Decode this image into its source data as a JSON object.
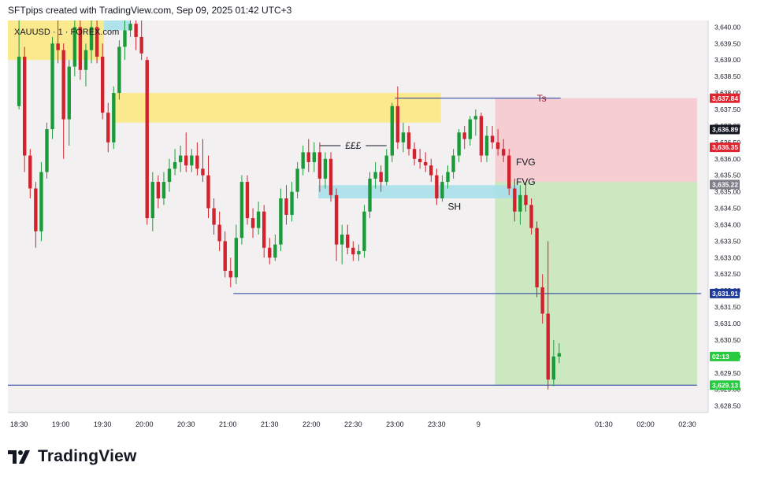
{
  "header": {
    "attribution": "SFTpips created with TradingView.com, Sep 09, 2025 01:42 UTC+3"
  },
  "footer": {
    "brand": "TradingView"
  },
  "symbol_label": "XAUUSD · 1 · FOREX.com",
  "colors": {
    "up": "#1b9a3a",
    "down": "#d2222d",
    "background": "#f3f0f1",
    "supply_zone": "#fbe882",
    "demand_zone": "#a7e0ea",
    "stop_zone": "#f6c8cc",
    "target_zone": "#c3e6b8",
    "level_line": "#1f3a9b",
    "current_price": "#27c93f"
  },
  "chart_data": {
    "type": "candlestick",
    "symbol": "XAUUSD",
    "timeframe": "1",
    "time_axis": [
      "18:30",
      "19:00",
      "19:30",
      "20:00",
      "20:30",
      "21:00",
      "21:30",
      "22:00",
      "22:30",
      "23:00",
      "23:30",
      "9",
      "01:30",
      "02:00",
      "02:30"
    ],
    "price_axis": [
      "3,640.00",
      "3,639.50",
      "3,639.00",
      "3,638.50",
      "3,638.00",
      "3,637.50",
      "3,637.00",
      "3,636.50",
      "3,636.00",
      "3,635.50",
      "3,635.00",
      "3,634.50",
      "3,634.00",
      "3,633.50",
      "3,633.00",
      "3,632.50",
      "3,632.00",
      "3,631.50",
      "3,631.00",
      "3,630.50",
      "3,630.00",
      "3,629.50",
      "3,629.00",
      "3,628.50"
    ],
    "ylim": [
      3628.3,
      3640.2
    ],
    "xlim": [
      "18:22",
      "02:45"
    ],
    "candles": [
      {
        "t": "18:30",
        "o": 3637.6,
        "h": 3640.2,
        "l": 3637.5,
        "c": 3639.1
      },
      {
        "t": "18:34",
        "o": 3639.1,
        "h": 3639.4,
        "l": 3635.6,
        "c": 3636.1
      },
      {
        "t": "18:38",
        "o": 3636.1,
        "h": 3636.3,
        "l": 3634.8,
        "c": 3635.1
      },
      {
        "t": "18:42",
        "o": 3635.1,
        "h": 3635.3,
        "l": 3633.3,
        "c": 3633.8
      },
      {
        "t": "18:46",
        "o": 3633.8,
        "h": 3635.9,
        "l": 3633.5,
        "c": 3635.6
      },
      {
        "t": "18:50",
        "o": 3635.6,
        "h": 3637.1,
        "l": 3635.4,
        "c": 3636.9
      },
      {
        "t": "18:54",
        "o": 3636.9,
        "h": 3639.7,
        "l": 3636.6,
        "c": 3639.5
      },
      {
        "t": "18:58",
        "o": 3639.5,
        "h": 3640.2,
        "l": 3638.9,
        "c": 3639.3
      },
      {
        "t": "19:02",
        "o": 3639.3,
        "h": 3639.5,
        "l": 3636.0,
        "c": 3637.2
      },
      {
        "t": "19:06",
        "o": 3637.2,
        "h": 3639.0,
        "l": 3636.4,
        "c": 3638.8
      },
      {
        "t": "19:10",
        "o": 3638.8,
        "h": 3640.2,
        "l": 3638.5,
        "c": 3640.0
      },
      {
        "t": "19:14",
        "o": 3640.0,
        "h": 3640.2,
        "l": 3638.4,
        "c": 3638.7
      },
      {
        "t": "19:18",
        "o": 3638.7,
        "h": 3639.5,
        "l": 3638.2,
        "c": 3639.3
      },
      {
        "t": "19:22",
        "o": 3639.3,
        "h": 3640.2,
        "l": 3638.9,
        "c": 3640.0
      },
      {
        "t": "19:26",
        "o": 3640.0,
        "h": 3640.2,
        "l": 3638.9,
        "c": 3639.1
      },
      {
        "t": "19:30",
        "o": 3639.1,
        "h": 3639.5,
        "l": 3637.2,
        "c": 3637.4
      },
      {
        "t": "19:34",
        "o": 3637.4,
        "h": 3637.7,
        "l": 3636.2,
        "c": 3636.5
      },
      {
        "t": "19:38",
        "o": 3636.5,
        "h": 3638.2,
        "l": 3636.3,
        "c": 3638.0
      },
      {
        "t": "19:42",
        "o": 3638.0,
        "h": 3639.6,
        "l": 3637.8,
        "c": 3639.4
      },
      {
        "t": "19:46",
        "o": 3639.4,
        "h": 3640.2,
        "l": 3639.0,
        "c": 3639.9
      },
      {
        "t": "19:50",
        "o": 3639.9,
        "h": 3640.2,
        "l": 3639.7,
        "c": 3640.1
      },
      {
        "t": "19:54",
        "o": 3640.1,
        "h": 3640.2,
        "l": 3639.3,
        "c": 3639.7
      },
      {
        "t": "19:58",
        "o": 3639.7,
        "h": 3640.2,
        "l": 3639.0,
        "c": 3639.2
      },
      {
        "t": "20:02",
        "o": 3639.0,
        "h": 3639.1,
        "l": 3634.0,
        "c": 3634.2
      },
      {
        "t": "20:06",
        "o": 3634.2,
        "h": 3635.6,
        "l": 3633.8,
        "c": 3635.3
      },
      {
        "t": "20:10",
        "o": 3635.3,
        "h": 3635.5,
        "l": 3634.5,
        "c": 3634.8
      },
      {
        "t": "20:14",
        "o": 3634.8,
        "h": 3635.6,
        "l": 3634.6,
        "c": 3635.3
      },
      {
        "t": "20:18",
        "o": 3635.3,
        "h": 3636.0,
        "l": 3635.0,
        "c": 3635.7
      },
      {
        "t": "20:22",
        "o": 3635.7,
        "h": 3636.3,
        "l": 3635.5,
        "c": 3635.9
      },
      {
        "t": "20:26",
        "o": 3635.9,
        "h": 3636.4,
        "l": 3635.6,
        "c": 3636.1
      },
      {
        "t": "20:30",
        "o": 3636.1,
        "h": 3636.8,
        "l": 3635.6,
        "c": 3635.8
      },
      {
        "t": "20:34",
        "o": 3635.8,
        "h": 3636.3,
        "l": 3635.6,
        "c": 3636.1
      },
      {
        "t": "20:38",
        "o": 3636.1,
        "h": 3636.5,
        "l": 3635.5,
        "c": 3635.7
      },
      {
        "t": "20:42",
        "o": 3635.7,
        "h": 3636.6,
        "l": 3635.3,
        "c": 3635.5
      },
      {
        "t": "20:46",
        "o": 3635.5,
        "h": 3636.1,
        "l": 3634.2,
        "c": 3634.5
      },
      {
        "t": "20:50",
        "o": 3634.5,
        "h": 3634.8,
        "l": 3633.7,
        "c": 3634.0
      },
      {
        "t": "20:54",
        "o": 3634.0,
        "h": 3634.4,
        "l": 3633.2,
        "c": 3633.5
      },
      {
        "t": "20:58",
        "o": 3633.5,
        "h": 3633.8,
        "l": 3632.4,
        "c": 3632.6
      },
      {
        "t": "21:02",
        "o": 3632.6,
        "h": 3633.0,
        "l": 3632.1,
        "c": 3632.4
      },
      {
        "t": "21:06",
        "o": 3632.4,
        "h": 3634.0,
        "l": 3632.2,
        "c": 3633.6
      },
      {
        "t": "21:10",
        "o": 3633.6,
        "h": 3635.5,
        "l": 3633.4,
        "c": 3635.3
      },
      {
        "t": "21:14",
        "o": 3635.3,
        "h": 3635.5,
        "l": 3634.0,
        "c": 3634.2
      },
      {
        "t": "21:18",
        "o": 3634.2,
        "h": 3634.5,
        "l": 3633.6,
        "c": 3633.9
      },
      {
        "t": "21:22",
        "o": 3633.9,
        "h": 3634.7,
        "l": 3633.7,
        "c": 3634.4
      },
      {
        "t": "21:26",
        "o": 3634.4,
        "h": 3634.6,
        "l": 3633.0,
        "c": 3633.3
      },
      {
        "t": "21:30",
        "o": 3633.3,
        "h": 3633.6,
        "l": 3632.8,
        "c": 3633.0
      },
      {
        "t": "21:34",
        "o": 3633.0,
        "h": 3633.7,
        "l": 3632.9,
        "c": 3633.4
      },
      {
        "t": "21:38",
        "o": 3633.4,
        "h": 3635.1,
        "l": 3633.2,
        "c": 3634.8
      },
      {
        "t": "21:42",
        "o": 3634.8,
        "h": 3635.2,
        "l": 3634.0,
        "c": 3634.3
      },
      {
        "t": "21:46",
        "o": 3634.3,
        "h": 3635.3,
        "l": 3634.1,
        "c": 3635.0
      },
      {
        "t": "21:50",
        "o": 3635.0,
        "h": 3635.9,
        "l": 3634.8,
        "c": 3635.7
      },
      {
        "t": "21:54",
        "o": 3635.7,
        "h": 3636.4,
        "l": 3635.5,
        "c": 3636.2
      },
      {
        "t": "21:58",
        "o": 3636.2,
        "h": 3636.6,
        "l": 3635.6,
        "c": 3635.9
      },
      {
        "t": "22:02",
        "o": 3635.9,
        "h": 3636.5,
        "l": 3635.6,
        "c": 3636.2
      },
      {
        "t": "22:06",
        "o": 3636.2,
        "h": 3636.5,
        "l": 3635.0,
        "c": 3635.4
      },
      {
        "t": "22:10",
        "o": 3635.4,
        "h": 3636.2,
        "l": 3635.1,
        "c": 3636.0
      },
      {
        "t": "22:14",
        "o": 3636.0,
        "h": 3636.2,
        "l": 3634.7,
        "c": 3634.9
      },
      {
        "t": "22:18",
        "o": 3634.9,
        "h": 3635.1,
        "l": 3632.9,
        "c": 3633.4
      },
      {
        "t": "22:22",
        "o": 3633.4,
        "h": 3634.0,
        "l": 3632.8,
        "c": 3633.7
      },
      {
        "t": "22:26",
        "o": 3633.7,
        "h": 3634.0,
        "l": 3633.1,
        "c": 3633.3
      },
      {
        "t": "22:30",
        "o": 3633.3,
        "h": 3633.5,
        "l": 3632.9,
        "c": 3633.1
      },
      {
        "t": "22:34",
        "o": 3633.1,
        "h": 3633.4,
        "l": 3632.9,
        "c": 3633.2
      },
      {
        "t": "22:38",
        "o": 3633.2,
        "h": 3634.6,
        "l": 3633.0,
        "c": 3634.4
      },
      {
        "t": "22:42",
        "o": 3634.4,
        "h": 3635.6,
        "l": 3634.2,
        "c": 3635.4
      },
      {
        "t": "22:46",
        "o": 3635.4,
        "h": 3635.9,
        "l": 3635.1,
        "c": 3635.6
      },
      {
        "t": "22:50",
        "o": 3635.6,
        "h": 3635.8,
        "l": 3635.0,
        "c": 3635.3
      },
      {
        "t": "22:54",
        "o": 3635.3,
        "h": 3636.3,
        "l": 3635.2,
        "c": 3636.1
      },
      {
        "t": "22:58",
        "o": 3636.1,
        "h": 3637.7,
        "l": 3635.9,
        "c": 3637.6
      },
      {
        "t": "23:02",
        "o": 3637.6,
        "h": 3638.2,
        "l": 3636.3,
        "c": 3636.5
      },
      {
        "t": "23:06",
        "o": 3636.5,
        "h": 3637.1,
        "l": 3636.2,
        "c": 3636.8
      },
      {
        "t": "23:10",
        "o": 3636.8,
        "h": 3637.0,
        "l": 3636.1,
        "c": 3636.3
      },
      {
        "t": "23:14",
        "o": 3636.3,
        "h": 3636.5,
        "l": 3635.8,
        "c": 3636.0
      },
      {
        "t": "23:18",
        "o": 3636.0,
        "h": 3636.3,
        "l": 3635.7,
        "c": 3635.9
      },
      {
        "t": "23:22",
        "o": 3635.9,
        "h": 3636.2,
        "l": 3635.6,
        "c": 3635.8
      },
      {
        "t": "23:26",
        "o": 3635.8,
        "h": 3636.0,
        "l": 3635.3,
        "c": 3635.5
      },
      {
        "t": "23:30",
        "o": 3635.5,
        "h": 3635.7,
        "l": 3634.6,
        "c": 3634.8
      },
      {
        "t": "23:34",
        "o": 3634.8,
        "h": 3635.5,
        "l": 3634.7,
        "c": 3635.3
      },
      {
        "t": "23:38",
        "o": 3635.3,
        "h": 3635.8,
        "l": 3635.1,
        "c": 3635.6
      },
      {
        "t": "23:42",
        "o": 3635.6,
        "h": 3636.3,
        "l": 3635.4,
        "c": 3636.1
      },
      {
        "t": "23:46",
        "o": 3636.1,
        "h": 3636.9,
        "l": 3635.9,
        "c": 3636.8
      },
      {
        "t": "23:50",
        "o": 3636.8,
        "h": 3637.0,
        "l": 3636.3,
        "c": 3636.6
      },
      {
        "t": "23:54",
        "o": 3636.6,
        "h": 3637.3,
        "l": 3636.4,
        "c": 3637.2
      },
      {
        "t": "23:58",
        "o": 3637.2,
        "h": 3637.5,
        "l": 3636.7,
        "c": 3637.3
      },
      {
        "t": "00:02",
        "o": 3637.3,
        "h": 3637.4,
        "l": 3635.9,
        "c": 3636.1
      },
      {
        "t": "00:06",
        "o": 3636.1,
        "h": 3637.0,
        "l": 3635.9,
        "c": 3636.7
      },
      {
        "t": "00:10",
        "o": 3636.7,
        "h": 3637.0,
        "l": 3636.3,
        "c": 3636.5
      },
      {
        "t": "00:14",
        "o": 3636.5,
        "h": 3636.9,
        "l": 3636.1,
        "c": 3636.3
      },
      {
        "t": "00:18",
        "o": 3636.3,
        "h": 3636.6,
        "l": 3635.9,
        "c": 3636.1
      },
      {
        "t": "00:22",
        "o": 3636.1,
        "h": 3636.3,
        "l": 3634.9,
        "c": 3635.1
      },
      {
        "t": "00:26",
        "o": 3635.1,
        "h": 3635.4,
        "l": 3634.1,
        "c": 3634.4
      },
      {
        "t": "00:30",
        "o": 3634.4,
        "h": 3635.2,
        "l": 3634.0,
        "c": 3634.9
      },
      {
        "t": "00:34",
        "o": 3634.9,
        "h": 3635.3,
        "l": 3634.4,
        "c": 3634.6
      },
      {
        "t": "00:38",
        "o": 3634.6,
        "h": 3634.8,
        "l": 3633.7,
        "c": 3633.9
      },
      {
        "t": "00:42",
        "o": 3633.9,
        "h": 3634.1,
        "l": 3631.8,
        "c": 3632.1
      },
      {
        "t": "00:46",
        "o": 3632.1,
        "h": 3632.5,
        "l": 3631.0,
        "c": 3631.3
      },
      {
        "t": "00:50",
        "o": 3631.3,
        "h": 3633.5,
        "l": 3629.0,
        "c": 3629.3
      },
      {
        "t": "00:54",
        "o": 3629.3,
        "h": 3630.5,
        "l": 3629.1,
        "c": 3630.0
      },
      {
        "t": "00:58",
        "o": 3630.0,
        "h": 3630.4,
        "l": 3629.8,
        "c": 3630.1
      }
    ],
    "zones": [
      {
        "name": "supply-zone-upper",
        "price_top": 3640.2,
        "price_bottom": 3639.0,
        "start": "18:22",
        "end": "19:31"
      },
      {
        "name": "supply-zone-main",
        "price_top": 3638.0,
        "price_bottom": 3637.1,
        "start": "19:37",
        "end": "23:33"
      },
      {
        "name": "demand-zone-upper",
        "price_top": 3640.2,
        "price_bottom": 3639.9,
        "start": "19:31",
        "end": "19:50"
      },
      {
        "name": "demand-zone-sh",
        "price_top": 3635.2,
        "price_bottom": 3634.8,
        "start": "22:05",
        "end": "00:30"
      }
    ],
    "levels": [
      {
        "name": "ts-level",
        "price": 3637.84,
        "start": "23:00",
        "end": "00:59"
      },
      {
        "name": "target-level-1",
        "price": 3631.91,
        "start": "21:04",
        "end": "02:40"
      },
      {
        "name": "target-level-2",
        "price": 3629.13,
        "start": "18:22",
        "end": "02:37"
      }
    ],
    "annotations": [
      {
        "name": "liquidity-label",
        "text": "£££",
        "price": 3636.4,
        "start": "22:06",
        "end": "22:54"
      },
      {
        "name": "ts-label",
        "text": "Ts",
        "price": 3637.84,
        "at": "00:42"
      },
      {
        "name": "fvg-label-1",
        "text": "FVG",
        "price": 3635.9,
        "at": "00:27"
      },
      {
        "name": "fvg-label-2",
        "text": "FVG",
        "price": 3635.3,
        "at": "00:27"
      },
      {
        "name": "sh-label",
        "text": "SH",
        "price": 3634.55,
        "at": "23:38"
      }
    ],
    "position_boxes": [
      {
        "name": "stop-box",
        "price_top": 3637.84,
        "price_bottom": 3635.3,
        "start": "00:12",
        "end": "02:37",
        "color": "stop_zone"
      },
      {
        "name": "target-box",
        "price_top": 3635.3,
        "price_bottom": 3629.13,
        "start": "00:12",
        "end": "02:37",
        "color": "target_zone"
      }
    ],
    "price_tags": [
      {
        "text": "3,637.84",
        "price": 3637.84,
        "bg": "#e02530"
      },
      {
        "text": "3,636.89",
        "price": 3636.89,
        "bg": "#131722"
      },
      {
        "text": "3,636.35",
        "price": 3636.35,
        "bg": "#e02530"
      },
      {
        "text": "3,635.22",
        "price": 3635.22,
        "bg": "#7f7f8a"
      },
      {
        "text": "3,631.91",
        "price": 3631.91,
        "bg": "#1f3a9b"
      },
      {
        "text": "02:13",
        "price": 3630.0,
        "bg": "#27c93f"
      },
      {
        "text": "3,629.13",
        "price": 3629.13,
        "bg": "#27c93f"
      }
    ]
  }
}
